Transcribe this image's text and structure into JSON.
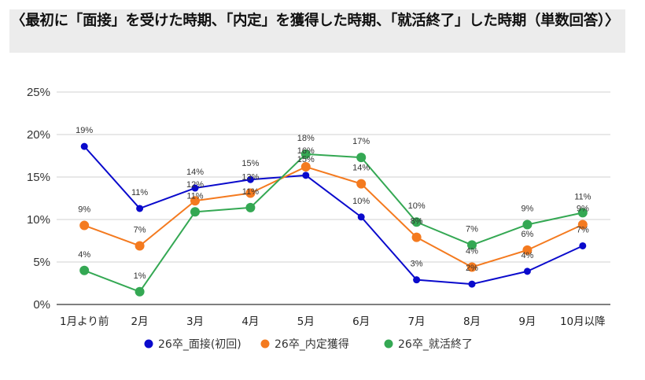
{
  "header": {
    "title": "〈最初に「面接」を受けた時期、「内定」を獲得した時期、「就活終了」した時期（単数回答）〉"
  },
  "chart_data": {
    "type": "line",
    "title": "〈最初に「面接」を受けた時期、「内定」を獲得した時期、「就活終了」した時期（単数回答）〉",
    "xlabel": "",
    "ylabel": "",
    "categories": [
      "1月より前",
      "2月",
      "3月",
      "4月",
      "5月",
      "6月",
      "7月",
      "8月",
      "9月",
      "10月以降"
    ],
    "ylim": [
      0,
      25
    ],
    "yticks": [
      0,
      5,
      10,
      15,
      20,
      25
    ],
    "ytick_labels": [
      "0%",
      "5%",
      "10%",
      "15%",
      "20%",
      "25%"
    ],
    "grid": true,
    "legend_position": "bottom",
    "series": [
      {
        "name": "26卒_面接(初回)",
        "color": "#0a0acc",
        "values": [
          18.6,
          11.3,
          13.7,
          14.7,
          15.2,
          10.3,
          2.9,
          2.4,
          3.9,
          6.9
        ],
        "labels": [
          "19%",
          "11%",
          "14%",
          "15%",
          "15%",
          "10%",
          "3%",
          "2%",
          "4%",
          "7%"
        ]
      },
      {
        "name": "26卒_内定獲得",
        "color": "#f47a1f",
        "values": [
          9.3,
          6.9,
          12.2,
          13.1,
          16.2,
          14.2,
          7.9,
          4.4,
          6.4,
          9.4
        ],
        "labels": [
          "9%",
          "7%",
          "12%",
          "13%",
          "16%",
          "14%",
          "8%",
          "4%",
          "6%",
          "9%"
        ]
      },
      {
        "name": "26卒_就活終了",
        "color": "#34a853",
        "values": [
          4.0,
          1.5,
          10.9,
          11.4,
          17.7,
          17.3,
          9.7,
          7.0,
          9.4,
          10.8
        ],
        "labels": [
          "4%",
          "1%",
          "11%",
          "11%",
          "18%",
          "17%",
          "10%",
          "7%",
          "9%",
          "11%"
        ]
      }
    ]
  }
}
